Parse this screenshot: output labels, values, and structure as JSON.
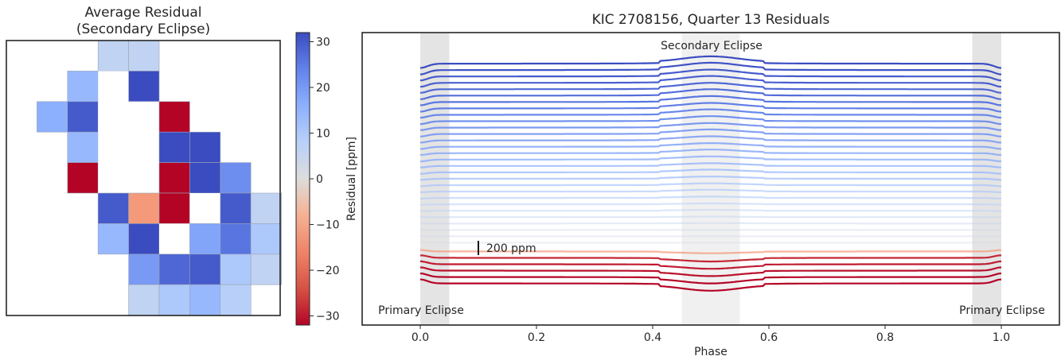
{
  "chart_data": [
    {
      "type": "heatmap",
      "title": "Average Residual\n(Secondary Eclipse)",
      "title_lines": [
        "Average Residual",
        "(Secondary Eclipse)"
      ],
      "grid_size": [
        9,
        9
      ],
      "cells": [
        {
          "row": 0,
          "col": 3,
          "value": 6
        },
        {
          "row": 0,
          "col": 4,
          "value": 6
        },
        {
          "row": 1,
          "col": 2,
          "value": 14
        },
        {
          "row": 1,
          "col": 3,
          "value": 0
        },
        {
          "row": 1,
          "col": 4,
          "value": 32
        },
        {
          "row": 2,
          "col": 1,
          "value": 16
        },
        {
          "row": 2,
          "col": 2,
          "value": 30
        },
        {
          "row": 2,
          "col": 3,
          "value": 0
        },
        {
          "row": 2,
          "col": 4,
          "value": 0
        },
        {
          "row": 2,
          "col": 5,
          "value": -32
        },
        {
          "row": 3,
          "col": 2,
          "value": 14
        },
        {
          "row": 3,
          "col": 3,
          "value": 0
        },
        {
          "row": 3,
          "col": 4,
          "value": 0
        },
        {
          "row": 3,
          "col": 5,
          "value": 32
        },
        {
          "row": 3,
          "col": 6,
          "value": 32
        },
        {
          "row": 4,
          "col": 2,
          "value": -32
        },
        {
          "row": 4,
          "col": 3,
          "value": 0
        },
        {
          "row": 4,
          "col": 4,
          "value": 0
        },
        {
          "row": 4,
          "col": 5,
          "value": -32
        },
        {
          "row": 4,
          "col": 6,
          "value": 32
        },
        {
          "row": 4,
          "col": 7,
          "value": 22
        },
        {
          "row": 5,
          "col": 3,
          "value": 30
        },
        {
          "row": 5,
          "col": 4,
          "value": -16
        },
        {
          "row": 5,
          "col": 5,
          "value": -32
        },
        {
          "row": 5,
          "col": 6,
          "value": 0
        },
        {
          "row": 5,
          "col": 7,
          "value": 30
        },
        {
          "row": 5,
          "col": 8,
          "value": 6
        },
        {
          "row": 6,
          "col": 3,
          "value": 14
        },
        {
          "row": 6,
          "col": 4,
          "value": 32
        },
        {
          "row": 6,
          "col": 5,
          "value": 0
        },
        {
          "row": 6,
          "col": 6,
          "value": 18
        },
        {
          "row": 6,
          "col": 7,
          "value": 26
        },
        {
          "row": 6,
          "col": 8,
          "value": 10
        },
        {
          "row": 7,
          "col": 4,
          "value": 20
        },
        {
          "row": 7,
          "col": 5,
          "value": 28
        },
        {
          "row": 7,
          "col": 6,
          "value": 30
        },
        {
          "row": 7,
          "col": 7,
          "value": 10
        },
        {
          "row": 7,
          "col": 8,
          "value": 6
        },
        {
          "row": 8,
          "col": 4,
          "value": 6
        },
        {
          "row": 8,
          "col": 5,
          "value": 10
        },
        {
          "row": 8,
          "col": 6,
          "value": 14
        },
        {
          "row": 8,
          "col": 7,
          "value": 8
        }
      ],
      "colorbar": {
        "label": "Residual [ppm]",
        "range": [
          -32,
          32
        ],
        "ticks": [
          30,
          20,
          10,
          0,
          -10,
          -20,
          -30
        ],
        "tick_labels": [
          "30",
          "20",
          "10",
          "0",
          "−10",
          "−20",
          "−30"
        ],
        "colormap": "coolwarm"
      }
    },
    {
      "type": "line",
      "title": "KIC 2708156, Quarter 13 Residuals",
      "xlabel": "Phase",
      "xlim": [
        -0.1,
        1.1
      ],
      "xticks": [
        0.0,
        0.2,
        0.4,
        0.6,
        0.8,
        1.0
      ],
      "xtick_labels": [
        "0.0",
        "0.2",
        "0.4",
        "0.6",
        "0.8",
        "1.0"
      ],
      "grid": false,
      "shaded_regions": [
        {
          "x": [
            0.0,
            0.05
          ],
          "label": "Primary Eclipse"
        },
        {
          "x": [
            0.45,
            0.55
          ],
          "label": "Secondary Eclipse"
        },
        {
          "x": [
            0.95,
            1.0
          ],
          "label": "Primary Eclipse"
        }
      ],
      "annotations": {
        "secondary": "Secondary Eclipse",
        "primary_left": "Primary Eclipse",
        "primary_right": "Primary Eclipse",
        "scale_bar": "200 ppm"
      },
      "scale_bar_ppm": 200,
      "series_offset_ppm": 100,
      "series_count": 35,
      "series": [
        {
          "residual_ppm": 32,
          "secondary_bump_ppm": 80,
          "primary_bump_ppm": -60
        },
        {
          "residual_ppm": 31,
          "secondary_bump_ppm": 80,
          "primary_bump_ppm": -60
        },
        {
          "residual_ppm": 30,
          "secondary_bump_ppm": 75,
          "primary_bump_ppm": -55
        },
        {
          "residual_ppm": 29,
          "secondary_bump_ppm": 75,
          "primary_bump_ppm": -55
        },
        {
          "residual_ppm": 28,
          "secondary_bump_ppm": 70,
          "primary_bump_ppm": -50
        },
        {
          "residual_ppm": 27,
          "secondary_bump_ppm": 70,
          "primary_bump_ppm": -50
        },
        {
          "residual_ppm": 26,
          "secondary_bump_ppm": 65,
          "primary_bump_ppm": -45
        },
        {
          "residual_ppm": 25,
          "secondary_bump_ppm": 60,
          "primary_bump_ppm": -45
        },
        {
          "residual_ppm": 24,
          "secondary_bump_ppm": 60,
          "primary_bump_ppm": -40
        },
        {
          "residual_ppm": 23,
          "secondary_bump_ppm": 55,
          "primary_bump_ppm": -40
        },
        {
          "residual_ppm": 22,
          "secondary_bump_ppm": 50,
          "primary_bump_ppm": -35
        },
        {
          "residual_ppm": 21,
          "secondary_bump_ppm": 50,
          "primary_bump_ppm": -35
        },
        {
          "residual_ppm": 20,
          "secondary_bump_ppm": 45,
          "primary_bump_ppm": -30
        },
        {
          "residual_ppm": 19,
          "secondary_bump_ppm": 40,
          "primary_bump_ppm": -30
        },
        {
          "residual_ppm": 18,
          "secondary_bump_ppm": 40,
          "primary_bump_ppm": -25
        },
        {
          "residual_ppm": 17,
          "secondary_bump_ppm": 35,
          "primary_bump_ppm": -25
        },
        {
          "residual_ppm": 16,
          "secondary_bump_ppm": 30,
          "primary_bump_ppm": -20
        },
        {
          "residual_ppm": 15,
          "secondary_bump_ppm": 30,
          "primary_bump_ppm": -20
        },
        {
          "residual_ppm": 14,
          "secondary_bump_ppm": 25,
          "primary_bump_ppm": -15
        },
        {
          "residual_ppm": 12,
          "secondary_bump_ppm": 20,
          "primary_bump_ppm": -15
        },
        {
          "residual_ppm": 11,
          "secondary_bump_ppm": 20,
          "primary_bump_ppm": -10
        },
        {
          "residual_ppm": 10,
          "secondary_bump_ppm": 15,
          "primary_bump_ppm": -10
        },
        {
          "residual_ppm": 8,
          "secondary_bump_ppm": 10,
          "primary_bump_ppm": -5
        },
        {
          "residual_ppm": 7,
          "secondary_bump_ppm": 10,
          "primary_bump_ppm": -5
        },
        {
          "residual_ppm": 6,
          "secondary_bump_ppm": 5,
          "primary_bump_ppm": 0
        },
        {
          "residual_ppm": 5,
          "secondary_bump_ppm": 5,
          "primary_bump_ppm": 0
        },
        {
          "residual_ppm": 4,
          "secondary_bump_ppm": 0,
          "primary_bump_ppm": 0
        },
        {
          "residual_ppm": 3,
          "secondary_bump_ppm": 0,
          "primary_bump_ppm": 0
        },
        {
          "residual_ppm": 2,
          "secondary_bump_ppm": 0,
          "primary_bump_ppm": 0
        },
        {
          "residual_ppm": -16,
          "secondary_bump_ppm": -20,
          "primary_bump_ppm": 20
        },
        {
          "residual_ppm": -29,
          "secondary_bump_ppm": -40,
          "primary_bump_ppm": 35
        },
        {
          "residual_ppm": -30,
          "secondary_bump_ppm": -50,
          "primary_bump_ppm": 40
        },
        {
          "residual_ppm": -31,
          "secondary_bump_ppm": -60,
          "primary_bump_ppm": 45
        },
        {
          "residual_ppm": -32,
          "secondary_bump_ppm": -70,
          "primary_bump_ppm": 50
        },
        {
          "residual_ppm": -32,
          "secondary_bump_ppm": -80,
          "primary_bump_ppm": 55
        }
      ]
    }
  ]
}
